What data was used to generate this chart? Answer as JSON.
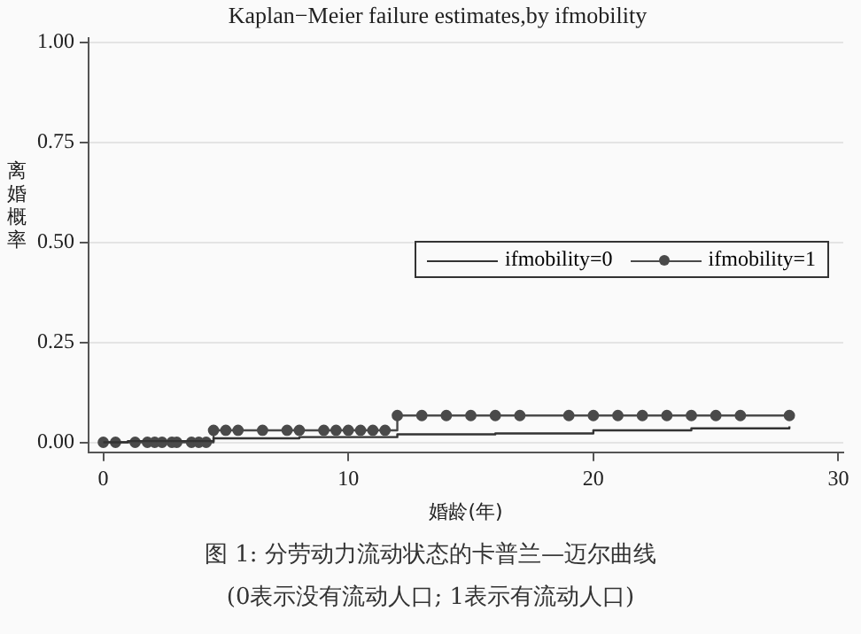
{
  "chart_data": {
    "type": "step",
    "title": "Kaplan−Meier failure estimates,by ifmobility",
    "xlabel": "婚龄(年)",
    "ylabel": "离婚概率",
    "annotations": [
      "图 1: 分劳动力流动状态的卡普兰—迈尔曲线",
      "(0表示没有流动人口; 1表示有流动人口)"
    ],
    "series": [
      {
        "name": "ifmobility=0",
        "color": "#333333",
        "marker": "none",
        "x": [
          0,
          1,
          4.5,
          8,
          12,
          16,
          20,
          24,
          28
        ],
        "values": [
          0,
          0.003,
          0.01,
          0.013,
          0.02,
          0.022,
          0.03,
          0.035,
          0.04
        ]
      },
      {
        "name": "ifmobility=1",
        "color": "#4a4a4a",
        "marker": "circle",
        "x": [
          0,
          0.5,
          1.3,
          1.8,
          2.1,
          2.4,
          2.8,
          3.0,
          3.6,
          3.9,
          4.2,
          4.5,
          5,
          5.5,
          6.5,
          7.5,
          8,
          9,
          9.5,
          10,
          10.5,
          11,
          11.5,
          12,
          13,
          14,
          15,
          16,
          17,
          19,
          20,
          21,
          22,
          23,
          24,
          25,
          26,
          28
        ],
        "values": [
          0,
          0,
          0,
          0,
          0,
          0,
          0,
          0,
          0,
          0,
          0,
          0.03,
          0.03,
          0.03,
          0.03,
          0.03,
          0.03,
          0.03,
          0.03,
          0.03,
          0.03,
          0.03,
          0.03,
          0.067,
          0.067,
          0.067,
          0.067,
          0.067,
          0.067,
          0.067,
          0.067,
          0.067,
          0.067,
          0.067,
          0.067,
          0.067,
          0.067,
          0.067
        ]
      }
    ],
    "xlim": [
      -0.6,
      30.2
    ],
    "xticks": [
      0,
      10,
      20,
      30
    ],
    "ylim": [
      -0.025,
      1.01
    ],
    "yticks": [
      {
        "value": 0,
        "label": "0.00"
      },
      {
        "value": 0.25,
        "label": "0.25"
      },
      {
        "value": 0.5,
        "label": "0.50"
      },
      {
        "value": 0.75,
        "label": "0.75"
      },
      {
        "value": 1,
        "label": "1.00"
      }
    ],
    "grid": "y",
    "legend": "right"
  }
}
